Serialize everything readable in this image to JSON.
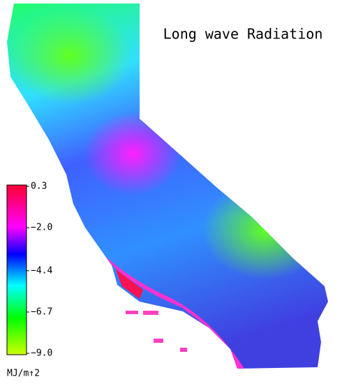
{
  "title": "Long wave Radiation",
  "colorbar": {
    "range": [
      -9.0,
      0.3
    ],
    "ticks": [
      0.3,
      {
        "value": -2.0,
        "label": "−2.0"
      },
      {
        "value": -4.4,
        "label": "−4.4"
      },
      {
        "value": -6.7,
        "label": "−6.7"
      },
      {
        "value": -9.0,
        "label": "−9.0"
      }
    ],
    "stops": [
      {
        "value": 0.3,
        "color": "#ff0033"
      },
      {
        "value": -2.0,
        "color": "#ff00ff"
      },
      {
        "value": -3.5,
        "color": "#0000ff"
      },
      {
        "value": -5.2,
        "color": "#00ffff"
      },
      {
        "value": -7.0,
        "color": "#00ff00"
      },
      {
        "value": -9.0,
        "color": "#ccff00"
      }
    ],
    "unit": "MJ/m↑2"
  }
}
